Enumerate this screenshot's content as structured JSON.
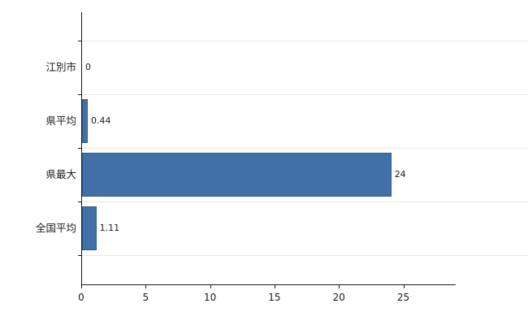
{
  "chart_data": {
    "type": "bar",
    "orientation": "horizontal",
    "title": "",
    "xlabel": "",
    "ylabel": "",
    "categories": [
      "江別市",
      "県平均",
      "県最大",
      "全国平均"
    ],
    "values": [
      0,
      0.44,
      24,
      1.11
    ],
    "value_labels": [
      "0",
      "0.44",
      "24",
      "1.11"
    ],
    "xlim": [
      0,
      29
    ],
    "xticks": [
      0,
      5,
      10,
      15,
      20,
      25
    ],
    "xtick_labels": [
      "0",
      "5",
      "10",
      "15",
      "20",
      "25"
    ],
    "grid": true,
    "legend": false,
    "bar_color": "#4170a6",
    "bar_border_color": "#2e5a8a",
    "axis_color": "#1a1a1a",
    "gridline_color": "#e6e6e6",
    "background_color": "#ffffff"
  }
}
